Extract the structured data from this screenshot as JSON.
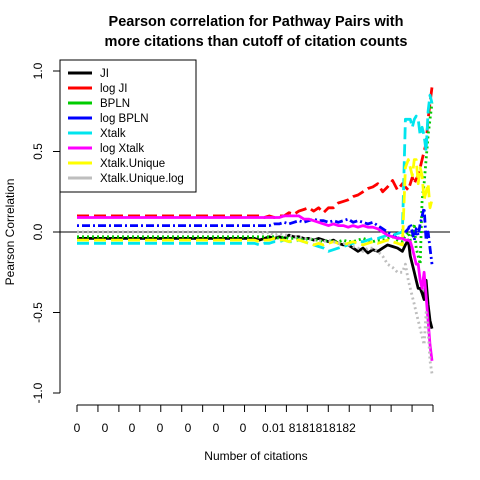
{
  "chart_data": {
    "type": "line",
    "title_lines": [
      "Pearson correlation for Pathway Pairs with",
      "more citations than cutoff of citation counts"
    ],
    "xlabel": "Number of citations",
    "ylabel": "Pearson Correlation",
    "ylim": [
      -1.0,
      1.0
    ],
    "y_ticks": [
      "-1.0",
      "-0.5",
      "0.0",
      "0.5",
      "1.0"
    ],
    "x_ticks": [
      "0",
      "0",
      "0",
      "0",
      "0",
      "0",
      "0",
      "0.01",
      "8",
      "1",
      "8",
      "1",
      "8",
      "1",
      "8",
      "1",
      "8",
      "2"
    ],
    "grid": false,
    "legend_position": "top-left",
    "x": [
      0,
      20,
      40,
      60,
      80,
      100,
      120,
      130,
      140,
      150,
      160,
      170,
      180,
      185,
      190,
      195,
      200,
      205,
      210,
      215,
      220,
      225,
      230,
      235,
      240,
      245,
      250,
      255,
      260,
      265,
      270,
      275,
      280,
      285,
      290,
      295,
      300,
      305,
      310,
      315,
      320,
      325,
      330,
      333,
      336,
      338,
      340,
      342,
      344,
      346,
      348,
      350,
      352,
      354,
      356,
      358,
      360
    ],
    "series": [
      {
        "name": "JI",
        "color": "#000000",
        "dash": "solid",
        "values": [
          -0.04,
          -0.04,
          -0.04,
          -0.04,
          -0.04,
          -0.04,
          -0.04,
          -0.04,
          -0.04,
          -0.04,
          -0.04,
          -0.04,
          -0.04,
          -0.05,
          -0.04,
          -0.03,
          -0.04,
          -0.03,
          -0.04,
          -0.02,
          -0.03,
          -0.03,
          -0.04,
          -0.04,
          -0.05,
          -0.04,
          -0.05,
          -0.06,
          -0.05,
          -0.07,
          -0.08,
          -0.08,
          -0.1,
          -0.12,
          -0.1,
          -0.13,
          -0.11,
          -0.12,
          -0.1,
          -0.08,
          -0.09,
          -0.1,
          -0.12,
          -0.08,
          -0.05,
          -0.15,
          -0.2,
          -0.25,
          -0.3,
          -0.35,
          -0.35,
          -0.38,
          -0.42,
          -0.3,
          -0.45,
          -0.55,
          -0.6
        ]
      },
      {
        "name": "log JI",
        "color": "#ff0000",
        "dash": "longdash",
        "values": [
          0.1,
          0.1,
          0.1,
          0.1,
          0.1,
          0.1,
          0.1,
          0.1,
          0.1,
          0.1,
          0.1,
          0.1,
          0.1,
          0.1,
          0.09,
          0.1,
          0.09,
          0.1,
          0.1,
          0.12,
          0.11,
          0.13,
          0.14,
          0.15,
          0.13,
          0.15,
          0.12,
          0.15,
          0.15,
          0.18,
          0.19,
          0.2,
          0.22,
          0.23,
          0.25,
          0.27,
          0.28,
          0.3,
          0.25,
          0.28,
          0.32,
          0.26,
          0.3,
          0.28,
          0.26,
          0.3,
          0.34,
          0.3,
          0.33,
          0.35,
          0.4,
          0.45,
          0.5,
          0.55,
          0.7,
          0.8,
          0.9
        ]
      },
      {
        "name": "BPLN",
        "color": "#00cc00",
        "dash": "dotted",
        "values": [
          -0.03,
          -0.03,
          -0.03,
          -0.03,
          -0.03,
          -0.03,
          -0.03,
          -0.03,
          -0.03,
          -0.03,
          -0.03,
          -0.03,
          -0.03,
          -0.03,
          -0.03,
          -0.03,
          -0.03,
          -0.04,
          -0.03,
          -0.04,
          -0.04,
          -0.04,
          -0.05,
          -0.04,
          -0.05,
          -0.05,
          -0.06,
          -0.05,
          -0.06,
          -0.06,
          -0.05,
          -0.06,
          -0.06,
          -0.05,
          -0.04,
          -0.05,
          -0.06,
          -0.05,
          -0.05,
          -0.04,
          -0.03,
          -0.05,
          -0.06,
          -0.02,
          0.0,
          -0.05,
          -0.02,
          0.05,
          -0.1,
          -0.15,
          -0.2,
          0.2,
          0.3,
          0.45,
          0.6,
          0.7,
          0.8
        ]
      },
      {
        "name": "log BPLN",
        "color": "#0000ff",
        "dash": "dotdash",
        "values": [
          0.04,
          0.04,
          0.04,
          0.04,
          0.04,
          0.04,
          0.04,
          0.04,
          0.04,
          0.04,
          0.04,
          0.04,
          0.04,
          0.04,
          0.04,
          0.04,
          0.05,
          0.05,
          0.06,
          0.05,
          0.06,
          0.07,
          0.06,
          0.07,
          0.08,
          0.07,
          0.07,
          0.06,
          0.07,
          0.06,
          0.07,
          0.08,
          0.06,
          0.07,
          0.06,
          0.05,
          0.06,
          0.04,
          0.02,
          0.0,
          -0.02,
          -0.04,
          -0.03,
          0.0,
          0.02,
          0.05,
          0.0,
          -0.05,
          0.02,
          -0.02,
          0.05,
          0.1,
          0.15,
          -0.05,
          0.0,
          -0.1,
          -0.2
        ]
      },
      {
        "name": "Xtalk",
        "color": "#00e5ee",
        "dash": "longdash",
        "values": [
          -0.07,
          -0.07,
          -0.07,
          -0.07,
          -0.07,
          -0.07,
          -0.07,
          -0.07,
          -0.07,
          -0.07,
          -0.07,
          -0.07,
          -0.07,
          -0.08,
          -0.07,
          -0.07,
          -0.06,
          -0.06,
          -0.05,
          -0.06,
          -0.06,
          -0.05,
          -0.06,
          -0.07,
          -0.08,
          -0.09,
          -0.1,
          -0.12,
          -0.11,
          -0.1,
          -0.09,
          -0.08,
          -0.07,
          -0.06,
          -0.06,
          -0.05,
          -0.04,
          -0.04,
          -0.03,
          -0.02,
          -0.02,
          -0.01,
          0.0,
          0.7,
          0.7,
          0.7,
          0.65,
          0.7,
          0.72,
          0.7,
          0.6,
          0.65,
          0.6,
          0.5,
          0.75,
          0.85,
          0.8
        ]
      },
      {
        "name": "log Xtalk",
        "color": "#ff00ff",
        "dash": "solid",
        "values": [
          0.09,
          0.09,
          0.09,
          0.09,
          0.09,
          0.09,
          0.09,
          0.09,
          0.09,
          0.09,
          0.09,
          0.09,
          0.09,
          0.09,
          0.09,
          0.09,
          0.09,
          0.09,
          0.1,
          0.1,
          0.1,
          0.1,
          0.08,
          0.08,
          0.07,
          0.06,
          0.05,
          0.04,
          0.05,
          0.04,
          0.04,
          0.03,
          0.04,
          0.03,
          0.04,
          0.03,
          0.03,
          0.02,
          0.0,
          -0.02,
          -0.03,
          -0.04,
          -0.04,
          -0.05,
          -0.05,
          -0.06,
          -0.1,
          -0.15,
          -0.2,
          -0.2,
          -0.3,
          -0.35,
          -0.25,
          -0.4,
          -0.55,
          -0.7,
          -0.8
        ]
      },
      {
        "name": "Xtalk.Unique",
        "color": "#ffff00",
        "dash": "longdash",
        "values": [
          -0.05,
          -0.05,
          -0.05,
          -0.05,
          -0.05,
          -0.05,
          -0.05,
          -0.05,
          -0.05,
          -0.05,
          -0.05,
          -0.05,
          -0.05,
          -0.06,
          -0.05,
          -0.05,
          -0.04,
          -0.05,
          -0.05,
          -0.06,
          -0.05,
          -0.05,
          -0.06,
          -0.07,
          -0.08,
          -0.07,
          -0.08,
          -0.07,
          -0.06,
          -0.07,
          -0.08,
          -0.07,
          -0.06,
          -0.07,
          -0.08,
          -0.07,
          -0.06,
          -0.07,
          -0.06,
          -0.05,
          -0.06,
          -0.07,
          -0.08,
          0.4,
          0.45,
          0.4,
          0.35,
          0.45,
          0.45,
          0.3,
          0.4,
          0.35,
          0.2,
          0.25,
          0.3,
          0.15,
          0.2
        ]
      },
      {
        "name": "Xtalk.Unique.log",
        "color": "#bebebe",
        "dash": "dotted",
        "values": [
          0.0,
          0.0,
          0.0,
          0.0,
          0.0,
          0.0,
          0.0,
          0.0,
          0.0,
          0.0,
          0.0,
          0.0,
          0.0,
          0.0,
          -0.01,
          0.0,
          -0.02,
          -0.01,
          -0.02,
          -0.02,
          -0.03,
          -0.03,
          -0.04,
          -0.04,
          -0.05,
          -0.05,
          -0.06,
          -0.05,
          -0.06,
          -0.07,
          -0.07,
          -0.08,
          -0.09,
          -0.1,
          -0.12,
          -0.1,
          -0.1,
          -0.12,
          -0.15,
          -0.2,
          -0.22,
          -0.25,
          -0.25,
          -0.2,
          -0.3,
          -0.35,
          -0.4,
          -0.45,
          -0.5,
          -0.55,
          -0.6,
          -0.65,
          -0.7,
          -0.5,
          -0.6,
          -0.8,
          -0.88
        ]
      }
    ]
  }
}
